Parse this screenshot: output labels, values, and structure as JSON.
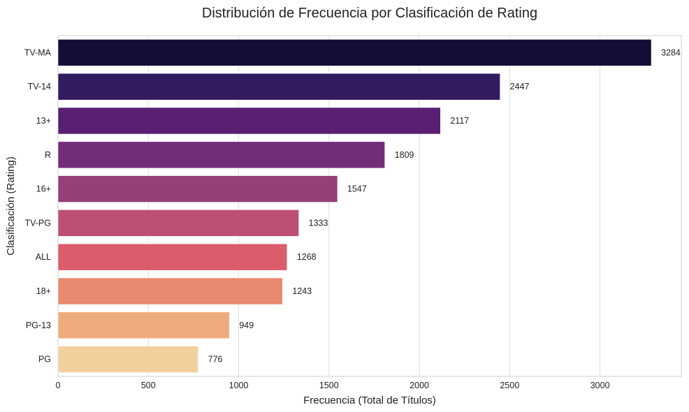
{
  "chart_data": {
    "type": "bar",
    "orientation": "horizontal",
    "title": "Distribución de Frecuencia por Clasificación de Rating",
    "xlabel": "Frecuencia (Total de Títulos)",
    "ylabel": "Clasificación (Rating)",
    "categories": [
      "TV-MA",
      "TV-14",
      "13+",
      "R",
      "16+",
      "TV-PG",
      "ALL",
      "18+",
      "PG-13",
      "PG"
    ],
    "values": [
      3284,
      2447,
      2117,
      1809,
      1547,
      1333,
      1268,
      1243,
      949,
      776
    ],
    "colors": [
      "#140e36",
      "#331b60",
      "#581f72",
      "#732d78",
      "#943f77",
      "#bc4f74",
      "#db5c6b",
      "#e88a70",
      "#eeac7e",
      "#f2d09e"
    ],
    "xlim": [
      0,
      3450
    ],
    "xticks": [
      0,
      500,
      1000,
      1500,
      2000,
      2500,
      3000
    ],
    "grid": true,
    "legend": "none"
  }
}
